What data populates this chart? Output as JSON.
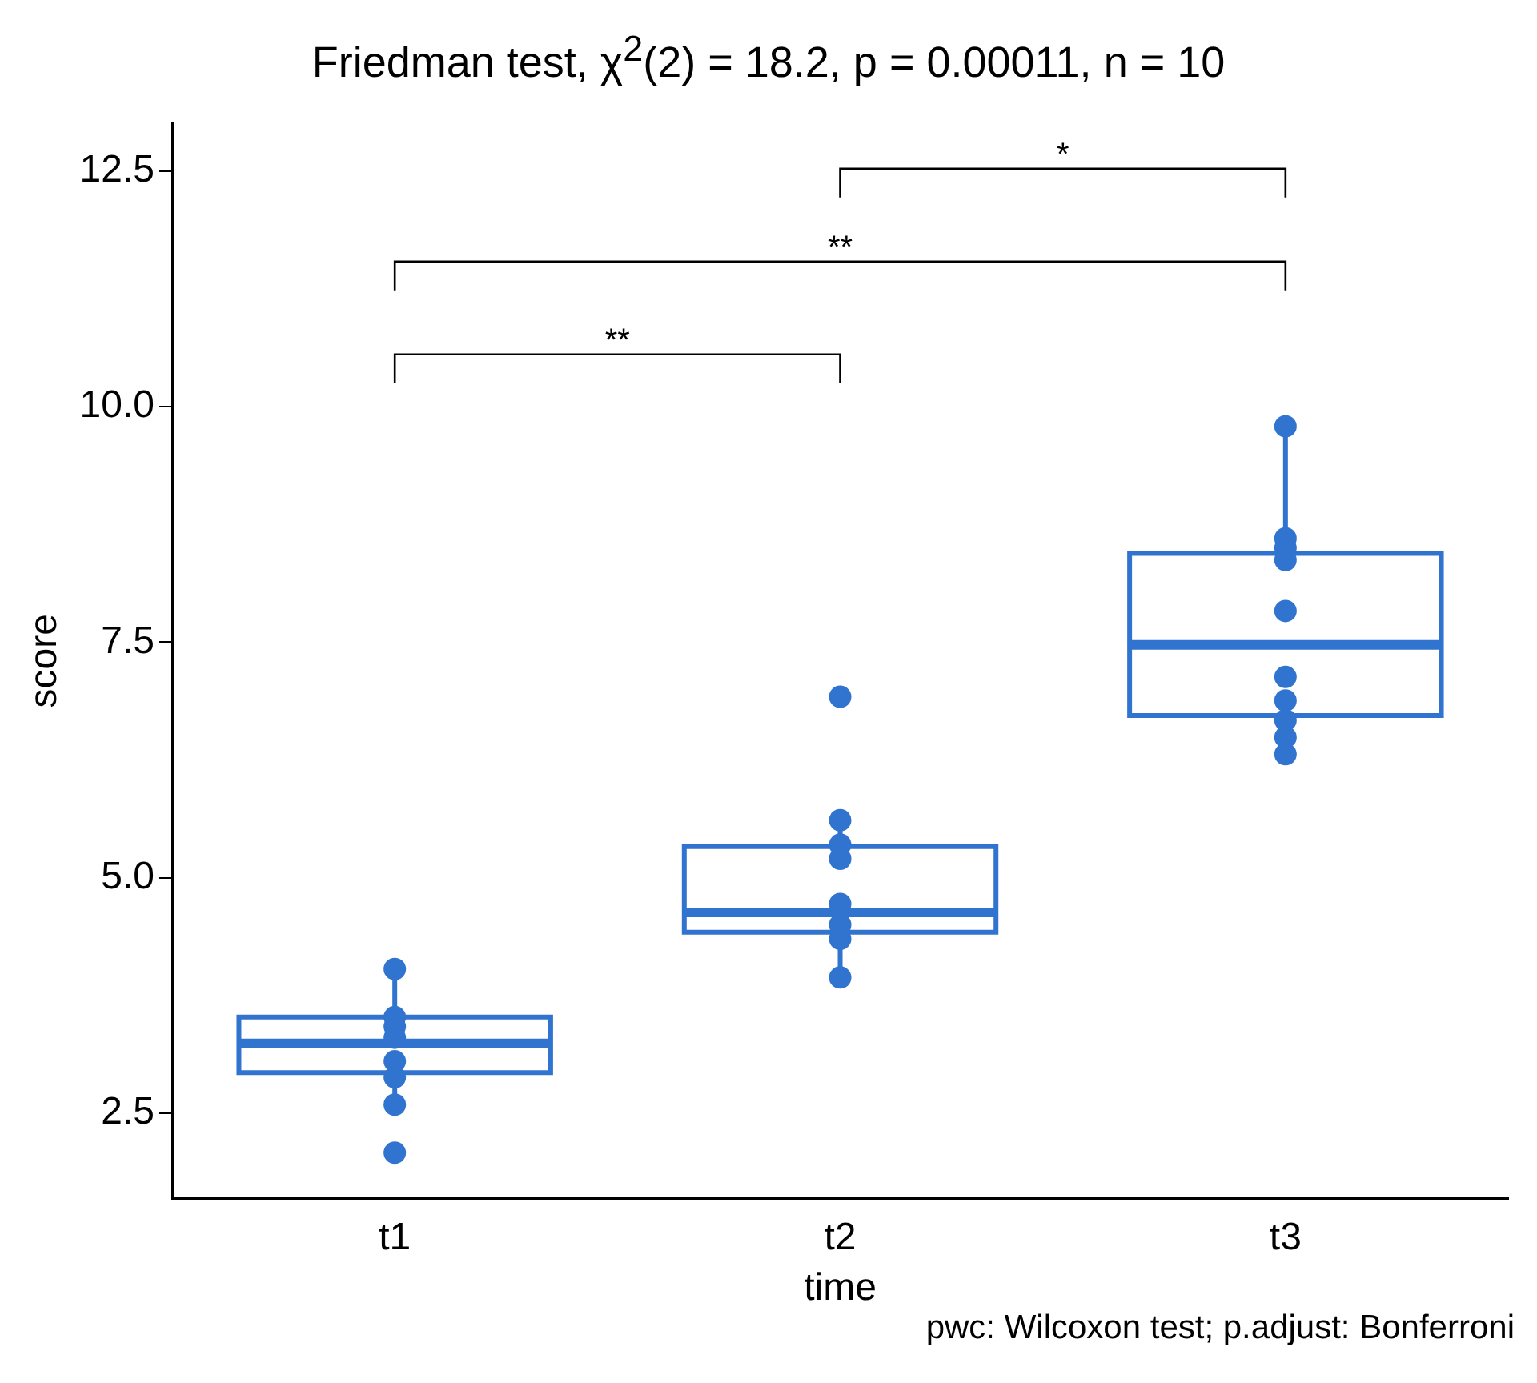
{
  "chart_data": {
    "type": "box",
    "title": "Friedman test, χ$^{2}$(2) = 18.2, p = 0.00011, n = 10",
    "xlabel": "time",
    "ylabel": "score",
    "categories": [
      "t1",
      "t2",
      "t3"
    ],
    "boxes": [
      {
        "low": 2.59,
        "q1": 2.93,
        "median": 3.24,
        "q3": 3.52,
        "high": 4.03
      },
      {
        "low": 3.94,
        "q1": 4.42,
        "median": 4.63,
        "q3": 5.33,
        "high": 5.61
      },
      {
        "low": 6.31,
        "q1": 6.72,
        "median": 7.47,
        "q3": 8.44,
        "high": 9.79
      }
    ],
    "color": "#3174d0",
    "series": [
      {
        "type": "scatter",
        "color": "#3174d0",
        "x": [
          "t1",
          "t1",
          "t1",
          "t1",
          "t1",
          "t1",
          "t1",
          "t1",
          "t2",
          "t2",
          "t2",
          "t2",
          "t2",
          "t2",
          "t2",
          "t2",
          "t3",
          "t3",
          "t3",
          "t3",
          "t3",
          "t3",
          "t3",
          "t3",
          "t3",
          "t3"
        ],
        "values": [
          4.03,
          3.52,
          3.42,
          3.3,
          3.05,
          2.88,
          2.59,
          2.08,
          6.92,
          5.61,
          5.35,
          5.2,
          4.72,
          4.5,
          4.35,
          3.94,
          9.79,
          8.6,
          8.5,
          8.37,
          7.83,
          7.13,
          6.88,
          6.67,
          6.49,
          6.31
        ]
      }
    ],
    "ylim": [
      1.6,
      13.0
    ],
    "yticks": [
      {
        "value": 2.5,
        "label": "2.5"
      },
      {
        "value": 5,
        "label": "5.0"
      },
      {
        "value": 7.5,
        "label": "7.5"
      },
      {
        "value": 10,
        "label": "10.0"
      },
      {
        "value": 12.5,
        "label": "12.5"
      }
    ],
    "grid": false,
    "legend": false,
    "marker": "circle",
    "annotations": [
      "*",
      "**",
      "**",
      "pwc: Wilcoxon test; p.adjust: Bonferroni"
    ]
  }
}
